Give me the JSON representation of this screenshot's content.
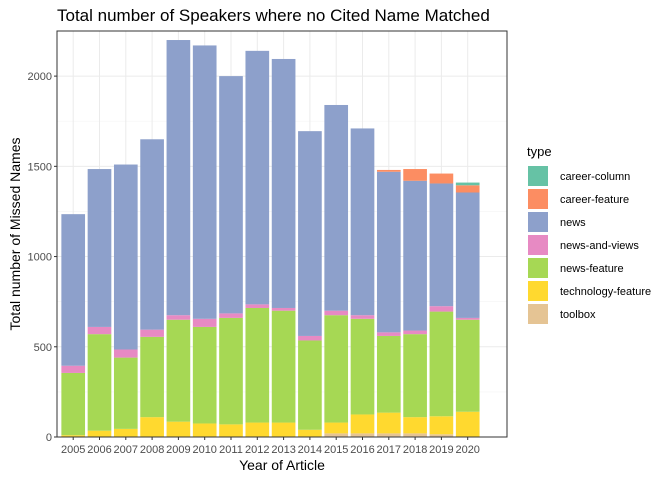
{
  "chart_data": {
    "type": "bar",
    "stacked": true,
    "title": "Total number of Speakers where no Cited Name Matched",
    "xlabel": "Year of Article",
    "ylabel": "Total number of Missed Names",
    "ylim": [
      0,
      2250
    ],
    "yticks": [
      0,
      500,
      1000,
      1500,
      2000
    ],
    "grid": true,
    "legend": {
      "title": "type",
      "position": "right"
    },
    "categories": [
      "2005",
      "2006",
      "2007",
      "2008",
      "2009",
      "2010",
      "2011",
      "2012",
      "2013",
      "2014",
      "2015",
      "2016",
      "2017",
      "2018",
      "2019",
      "2020"
    ],
    "series": [
      {
        "name": "toolbox",
        "color": "#E5C494",
        "values": [
          0,
          0,
          0,
          0,
          0,
          0,
          0,
          0,
          0,
          0,
          20,
          20,
          20,
          20,
          15,
          0
        ]
      },
      {
        "name": "technology-feature",
        "color": "#FFD92F",
        "values": [
          10,
          35,
          45,
          110,
          85,
          75,
          70,
          80,
          80,
          40,
          60,
          105,
          115,
          90,
          100,
          140
        ]
      },
      {
        "name": "news-feature",
        "color": "#A6D854",
        "values": [
          345,
          535,
          395,
          445,
          565,
          535,
          590,
          635,
          620,
          495,
          595,
          530,
          425,
          460,
          580,
          510
        ]
      },
      {
        "name": "news-and-views",
        "color": "#E78AC3",
        "values": [
          40,
          40,
          45,
          40,
          25,
          45,
          25,
          20,
          15,
          25,
          25,
          20,
          20,
          20,
          30,
          10
        ]
      },
      {
        "name": "news",
        "color": "#8DA0CB",
        "values": [
          840,
          875,
          1025,
          1055,
          1525,
          1515,
          1315,
          1405,
          1380,
          1135,
          1140,
          1035,
          890,
          830,
          680,
          695
        ]
      },
      {
        "name": "career-feature",
        "color": "#FC8D62",
        "values": [
          0,
          0,
          0,
          0,
          0,
          0,
          0,
          0,
          0,
          0,
          0,
          0,
          10,
          65,
          55,
          40
        ]
      },
      {
        "name": "career-column",
        "color": "#66C2A5",
        "values": [
          0,
          0,
          0,
          0,
          0,
          0,
          0,
          0,
          0,
          0,
          0,
          0,
          0,
          0,
          0,
          15
        ]
      }
    ],
    "legend_order": [
      "career-column",
      "career-feature",
      "news",
      "news-and-views",
      "news-feature",
      "technology-feature",
      "toolbox"
    ]
  }
}
